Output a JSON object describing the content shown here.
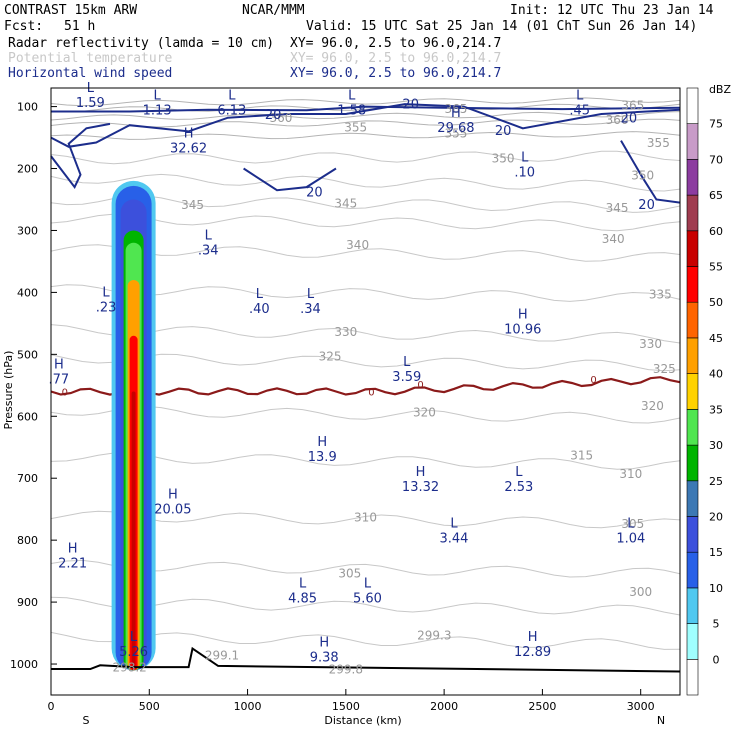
{
  "header": {
    "model": "CONTRAST 15km ARW",
    "center": "NCAR/MMM",
    "init": "Init: 12 UTC Thu 23 Jan 14",
    "fcst_label": "Fcst:",
    "fcst_value": "51 h",
    "valid": "Valid: 15 UTC Sat 25 Jan 14 (01 ChT Sun 26 Jan 14)",
    "fields": [
      {
        "name": "Radar reflectivity (lamda = 10 cm)",
        "xy": "XY=  96.0,  2.5 to  96.0,214.7",
        "color": "#000000"
      },
      {
        "name": "Potential temperature",
        "xy": "XY=  96.0,  2.5 to  96.0,214.7",
        "color": "#c8c8c8"
      },
      {
        "name": "Horizontal wind speed",
        "xy": "XY=  96.0,  2.5 to  96.0,214.7",
        "color": "#1c2d8c"
      }
    ]
  },
  "chart_data": {
    "type": "cross-section",
    "xlabel": "Distance (km)",
    "ylabel": "Pressure (hPa)",
    "xlim": [
      0,
      3200
    ],
    "ylim": [
      1050,
      70
    ],
    "x_ticks": [
      0,
      500,
      1000,
      1500,
      2000,
      2500,
      3000
    ],
    "y_ticks": [
      100,
      200,
      300,
      400,
      500,
      600,
      700,
      800,
      900,
      1000
    ],
    "x_end_labels": {
      "left": "S",
      "right": "N"
    },
    "colorbar": {
      "unit": "dBZ",
      "levels": [
        0,
        5,
        10,
        15,
        20,
        25,
        30,
        35,
        40,
        45,
        50,
        55,
        60,
        65,
        70,
        75
      ],
      "colors": [
        "#ffffff",
        "#a0ffff",
        "#50c8f0",
        "#2860e8",
        "#3c50dc",
        "#3c78b4",
        "#00b400",
        "#50e650",
        "#ffd200",
        "#ffa000",
        "#ff6400",
        "#ff0000",
        "#c80000",
        "#a03c50",
        "#8c3ca0",
        "#c89bc8",
        "#ffffff"
      ]
    },
    "theta_labels": [
      {
        "text": "360",
        "x": 1170,
        "p": 125
      },
      {
        "text": "355",
        "x": 1550,
        "p": 140
      },
      {
        "text": "365",
        "x": 2060,
        "p": 110
      },
      {
        "text": "355",
        "x": 2060,
        "p": 150
      },
      {
        "text": "365",
        "x": 2960,
        "p": 105
      },
      {
        "text": "360",
        "x": 2880,
        "p": 128
      },
      {
        "text": "355",
        "x": 3090,
        "p": 165
      },
      {
        "text": "350",
        "x": 2300,
        "p": 190
      },
      {
        "text": "350",
        "x": 3010,
        "p": 218
      },
      {
        "text": "345",
        "x": 720,
        "p": 265
      },
      {
        "text": "345",
        "x": 1500,
        "p": 263
      },
      {
        "text": "345",
        "x": 2880,
        "p": 270
      },
      {
        "text": "340",
        "x": 1560,
        "p": 330
      },
      {
        "text": "340",
        "x": 2860,
        "p": 320
      },
      {
        "text": "335",
        "x": 3100,
        "p": 410
      },
      {
        "text": "330",
        "x": 1500,
        "p": 470
      },
      {
        "text": "330",
        "x": 3050,
        "p": 490
      },
      {
        "text": "325",
        "x": 1420,
        "p": 510
      },
      {
        "text": "325",
        "x": 3120,
        "p": 530
      },
      {
        "text": "320",
        "x": 1900,
        "p": 600
      },
      {
        "text": "320",
        "x": 3060,
        "p": 590
      },
      {
        "text": "315",
        "x": 2700,
        "p": 670
      },
      {
        "text": "310",
        "x": 1600,
        "p": 770
      },
      {
        "text": "310",
        "x": 2950,
        "p": 700
      },
      {
        "text": "305",
        "x": 2960,
        "p": 780
      },
      {
        "text": "305",
        "x": 1520,
        "p": 860
      },
      {
        "text": "300",
        "x": 3000,
        "p": 890
      },
      {
        "text": "299.3",
        "x": 1950,
        "p": 960
      },
      {
        "text": "299.8",
        "x": 1500,
        "p": 1015
      },
      {
        "text": "299.1",
        "x": 870,
        "p": 993
      },
      {
        "text": "298.2",
        "x": 400,
        "p": 1012
      }
    ],
    "wind_contour_labels": [
      {
        "text": "20",
        "x": 1130,
        "p": 112
      },
      {
        "text": "20",
        "x": 1830,
        "p": 95
      },
      {
        "text": "20",
        "x": 2300,
        "p": 138
      },
      {
        "text": "20",
        "x": 2940,
        "p": 118
      },
      {
        "text": "20",
        "x": 1340,
        "p": 237
      },
      {
        "text": "20",
        "x": 3030,
        "p": 257
      }
    ],
    "zero_line_labels": [
      {
        "text": "0",
        "x": 70,
        "p": 560
      },
      {
        "text": "0",
        "x": 1630,
        "p": 560
      },
      {
        "text": "0",
        "x": 1880,
        "p": 548
      },
      {
        "text": "0",
        "x": 2760,
        "p": 540
      }
    ],
    "extrema": [
      {
        "type": "L",
        "value": "1.59",
        "x": 200,
        "p": 80
      },
      {
        "type": "L",
        "value": "1.13",
        "x": 540,
        "p": 92
      },
      {
        "type": "L",
        "value": "6.13",
        "x": 920,
        "p": 92
      },
      {
        "type": "L",
        "value": "1.58",
        "x": 1530,
        "p": 92
      },
      {
        "type": "L",
        "value": ".45",
        "x": 2690,
        "p": 92
      },
      {
        "type": "H",
        "value": "29.68",
        "x": 2060,
        "p": 120
      },
      {
        "type": "H",
        "value": "32.62",
        "x": 700,
        "p": 153
      },
      {
        "type": "L",
        "value": ".10",
        "x": 2410,
        "p": 192
      },
      {
        "type": "L",
        "value": ".34",
        "x": 800,
        "p": 318
      },
      {
        "type": "L",
        "value": ".23",
        "x": 280,
        "p": 410
      },
      {
        "type": "L",
        "value": ".40",
        "x": 1060,
        "p": 412
      },
      {
        "type": "L",
        "value": ".34",
        "x": 1320,
        "p": 412
      },
      {
        "type": "H",
        "value": "10.96",
        "x": 2400,
        "p": 445
      },
      {
        "type": "H",
        "value": ".77",
        "x": 40,
        "p": 526
      },
      {
        "type": "L",
        "value": "3.59",
        "x": 1810,
        "p": 522
      },
      {
        "type": "H",
        "value": "13.9",
        "x": 1380,
        "p": 651
      },
      {
        "type": "H",
        "value": "13.32",
        "x": 1880,
        "p": 700
      },
      {
        "type": "L",
        "value": "2.53",
        "x": 2380,
        "p": 700
      },
      {
        "type": "H",
        "value": "20.05",
        "x": 620,
        "p": 736
      },
      {
        "type": "L",
        "value": "3.44",
        "x": 2050,
        "p": 783
      },
      {
        "type": "L",
        "value": "1.04",
        "x": 2950,
        "p": 783
      },
      {
        "type": "H",
        "value": "2.21",
        "x": 110,
        "p": 823
      },
      {
        "type": "L",
        "value": "4.85",
        "x": 1280,
        "p": 880
      },
      {
        "type": "L",
        "value": "5.60",
        "x": 1610,
        "p": 880
      },
      {
        "type": "L",
        "value": "5.26",
        "x": 420,
        "p": 966
      },
      {
        "type": "H",
        "value": "9.38",
        "x": 1390,
        "p": 975
      },
      {
        "type": "H",
        "value": "12.89",
        "x": 2450,
        "p": 966
      }
    ],
    "reflectivity_column": {
      "x_center_km": 420,
      "top_hPa": 220,
      "bottom_hPa": 1010,
      "max_dBZ": 55
    },
    "freezing_level_hPa": 560,
    "terrain": {
      "x": [
        0,
        200,
        250,
        420,
        700,
        720,
        850,
        3200
      ],
      "p": [
        1008,
        1008,
        1002,
        1005,
        1005,
        975,
        1003,
        1012
      ]
    }
  }
}
